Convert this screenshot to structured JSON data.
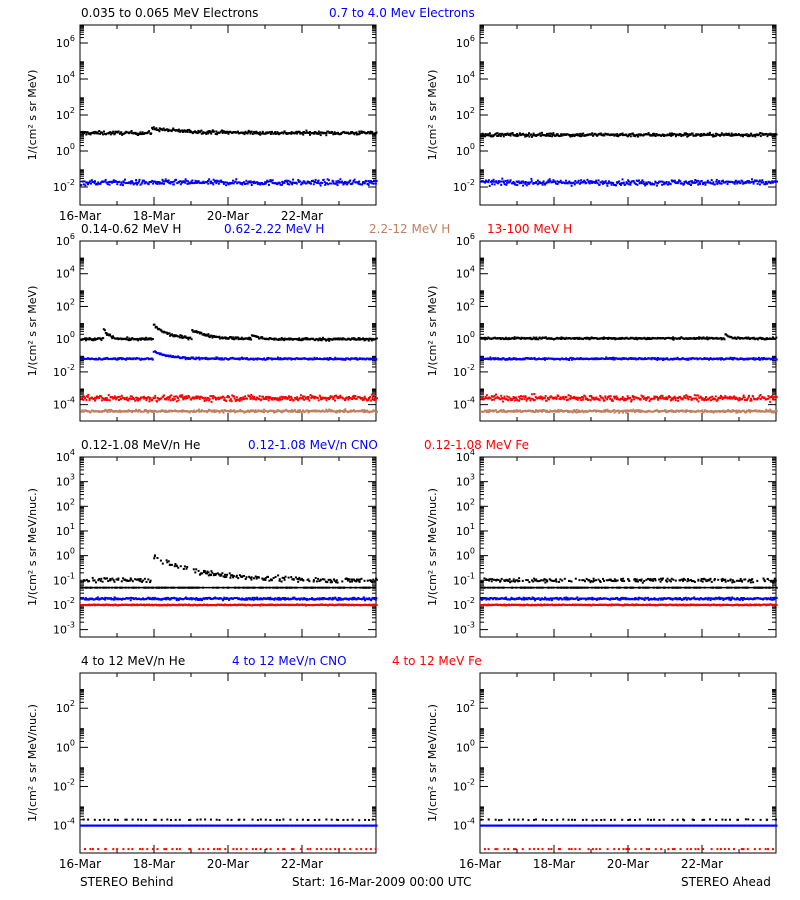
{
  "colors": {
    "black": "#000000",
    "blue": "#0000ff",
    "red": "#ff0000",
    "salmon": "#c08060"
  },
  "rows": [
    {
      "legend": [
        {
          "text": "0.035 to 0.065 MeV Electrons",
          "color": "#000000"
        },
        {
          "text": "0.7 to 4.0 Mev Electrons",
          "color": "#0000ff"
        }
      ]
    },
    {
      "legend": [
        {
          "text": "0.14-0.62 MeV H",
          "color": "#000000"
        },
        {
          "text": "0.62-2.22 MeV H",
          "color": "#0000ff"
        },
        {
          "text": "2.2-12 MeV H",
          "color": "#c08060"
        },
        {
          "text": "13-100 MeV H",
          "color": "#ff0000"
        }
      ]
    },
    {
      "legend": [
        {
          "text": "0.12-1.08 MeV/n He",
          "color": "#000000"
        },
        {
          "text": "0.12-1.08 MeV/n CNO",
          "color": "#0000ff"
        },
        {
          "text": "0.12-1.08 MeV Fe",
          "color": "#ff0000"
        }
      ]
    },
    {
      "legend": [
        {
          "text": "4 to 12 MeV/n He",
          "color": "#000000"
        },
        {
          "text": "4 to 12 MeV/n CNO",
          "color": "#0000ff"
        },
        {
          "text": "4 to 12 MeV Fe",
          "color": "#ff0000"
        }
      ]
    }
  ],
  "footer": {
    "left": "STEREO Behind",
    "center": "Start: 16-Mar-2009 00:00 UTC",
    "right": "STEREO Ahead"
  },
  "chart_data": [
    {
      "type": "scatter",
      "panel": "Behind electrons",
      "ylabel": "1/(cm² s sr MeV)",
      "log_y": true,
      "ylim_exp": [
        -3,
        7
      ],
      "yticks_exp": [
        -2,
        0,
        2,
        4,
        6
      ],
      "x_range_days": [
        0,
        8
      ],
      "xticks": [
        "16-Mar",
        "18-Mar",
        "20-Mar",
        "22-Mar"
      ],
      "series": [
        {
          "name": "0.035 to 0.065 MeV Electrons",
          "color": "#000000",
          "level_exp": 1.0,
          "noise": 0.1,
          "events": [
            [
              1.9,
              0.25,
              2.0
            ]
          ]
        },
        {
          "name": "0.7 to 4.0 Mev Electrons",
          "color": "#0000ff",
          "level_exp": -1.75,
          "noise": 0.15
        }
      ]
    },
    {
      "type": "scatter",
      "panel": "Ahead electrons",
      "ylabel": "1/(cm² s sr MeV)",
      "log_y": true,
      "ylim_exp": [
        -3,
        7
      ],
      "yticks_exp": [
        -2,
        0,
        2,
        4,
        6
      ],
      "x_range_days": [
        0,
        8
      ],
      "xticks": [],
      "series": [
        {
          "name": "0.035 to 0.065 MeV Electrons",
          "color": "#000000",
          "level_exp": 0.9,
          "noise": 0.1
        },
        {
          "name": "0.7 to 4.0 Mev Electrons",
          "color": "#0000ff",
          "level_exp": -1.75,
          "noise": 0.15
        }
      ]
    },
    {
      "type": "scatter",
      "panel": "Behind protons",
      "ylabel": "1/(cm² s sr MeV)",
      "log_y": true,
      "ylim_exp": [
        -5,
        6
      ],
      "yticks_exp": [
        -4,
        -2,
        0,
        2,
        4,
        6
      ],
      "x_range_days": [
        0,
        8
      ],
      "xticks": [],
      "series": [
        {
          "name": "0.14-0.62 MeV H",
          "color": "#000000",
          "level_exp": 0.0,
          "noise": 0.08,
          "events": [
            [
              0.6,
              0.7,
              0.3
            ],
            [
              1.95,
              0.9,
              0.8
            ],
            [
              3.0,
              0.5,
              1.0
            ],
            [
              4.6,
              0.3,
              0.3
            ]
          ]
        },
        {
          "name": "0.62-2.22 MeV H",
          "color": "#0000ff",
          "level_exp": -1.2,
          "noise": 0.06,
          "events": [
            [
              1.95,
              0.5,
              0.8
            ]
          ]
        },
        {
          "name": "2.2-12 MeV H",
          "color": "#c08060",
          "level_exp": -4.4,
          "noise": 0.08
        },
        {
          "name": "13-100 MeV H",
          "color": "#ff0000",
          "level_exp": -3.6,
          "noise": 0.18
        }
      ]
    },
    {
      "type": "scatter",
      "panel": "Ahead protons",
      "ylabel": "1/(cm² s sr MeV)",
      "log_y": true,
      "ylim_exp": [
        -5,
        6
      ],
      "yticks_exp": [
        -4,
        -2,
        0,
        2,
        4,
        6
      ],
      "x_range_days": [
        0,
        8
      ],
      "xticks": [],
      "series": [
        {
          "name": "0.14-0.62 MeV H",
          "color": "#000000",
          "level_exp": 0.05,
          "noise": 0.06,
          "events": [
            [
              6.6,
              0.3,
              0.2
            ]
          ]
        },
        {
          "name": "0.62-2.22 MeV H",
          "color": "#0000ff",
          "level_exp": -1.2,
          "noise": 0.06
        },
        {
          "name": "2.2-12 MeV H",
          "color": "#c08060",
          "level_exp": -4.4,
          "noise": 0.08
        },
        {
          "name": "13-100 MeV H",
          "color": "#ff0000",
          "level_exp": -3.6,
          "noise": 0.18
        }
      ]
    },
    {
      "type": "scatter",
      "panel": "Behind heavy ions",
      "ylabel": "1/(cm² s sr MeV/nuc.)",
      "log_y": true,
      "ylim_exp": [
        -3.3,
        4
      ],
      "yticks_exp": [
        -3,
        -2,
        -1,
        0,
        1,
        2,
        3,
        4
      ],
      "x_range_days": [
        0,
        8
      ],
      "xticks": [],
      "series": [
        {
          "name": "0.12-1.08 MeV/n He",
          "color": "#000000",
          "level_exp": -1.0,
          "noise": 0.1,
          "baseline_exp": -1.3,
          "events": [
            [
              1.9,
              1.0,
              2.5
            ]
          ]
        },
        {
          "name": "0.12-1.08 MeV/n CNO",
          "color": "#0000ff",
          "level_exp": -1.75,
          "noise": 0.05
        },
        {
          "name": "0.12-1.08 MeV Fe",
          "color": "#ff0000",
          "level_exp": -2.0,
          "noise": 0.02
        }
      ]
    },
    {
      "type": "scatter",
      "panel": "Ahead heavy ions",
      "ylabel": "1/(cm² s sr MeV/nuc.)",
      "log_y": true,
      "ylim_exp": [
        -3.3,
        4
      ],
      "yticks_exp": [
        -3,
        -2,
        -1,
        0,
        1,
        2,
        3,
        4
      ],
      "x_range_days": [
        0,
        8
      ],
      "xticks": [],
      "series": [
        {
          "name": "0.12-1.08 MeV/n He",
          "color": "#000000",
          "level_exp": -1.0,
          "noise": 0.08,
          "baseline_exp": -1.3
        },
        {
          "name": "0.12-1.08 MeV/n CNO",
          "color": "#0000ff",
          "level_exp": -1.75,
          "noise": 0.05
        },
        {
          "name": "0.12-1.08 MeV Fe",
          "color": "#ff0000",
          "level_exp": -2.0,
          "noise": 0.02
        }
      ]
    },
    {
      "type": "scatter",
      "panel": "Behind 4-12 MeV/n",
      "ylabel": "1/(cm² s sr MeV/nuc.)",
      "log_y": true,
      "ylim_exp": [
        -5.4,
        3.8
      ],
      "yticks_exp": [
        -4,
        -2,
        0,
        2
      ],
      "x_range_days": [
        0,
        8
      ],
      "xticks": [
        "16-Mar",
        "18-Mar",
        "20-Mar",
        "22-Mar"
      ],
      "series": [
        {
          "name": "4 to 12 MeV/n He",
          "color": "#000000",
          "level_exp": -3.7,
          "noise": 0.02,
          "sparse": true
        },
        {
          "name": "4 to 12 MeV/n CNO",
          "color": "#0000ff",
          "level_exp": -4.0,
          "noise": 0.0,
          "baseline_exp": -4.0
        },
        {
          "name": "4 to 12 MeV Fe",
          "color": "#ff0000",
          "level_exp": -5.2,
          "noise": 0.0,
          "sparse": true
        }
      ]
    },
    {
      "type": "scatter",
      "panel": "Ahead 4-12 MeV/n",
      "ylabel": "1/(cm² s sr MeV/nuc.)",
      "log_y": true,
      "ylim_exp": [
        -5.4,
        3.8
      ],
      "yticks_exp": [
        -4,
        -2,
        0,
        2
      ],
      "x_range_days": [
        0,
        8
      ],
      "xticks": [
        "16-Mar",
        "18-Mar",
        "20-Mar",
        "22-Mar"
      ],
      "series": [
        {
          "name": "4 to 12 MeV/n He",
          "color": "#000000",
          "level_exp": -3.7,
          "noise": 0.02,
          "sparse": true
        },
        {
          "name": "4 to 12 MeV/n CNO",
          "color": "#0000ff",
          "level_exp": -4.0,
          "noise": 0.0,
          "baseline_exp": -4.0
        },
        {
          "name": "4 to 12 MeV Fe",
          "color": "#ff0000",
          "level_exp": -5.2,
          "noise": 0.0,
          "sparse": true
        }
      ]
    }
  ]
}
